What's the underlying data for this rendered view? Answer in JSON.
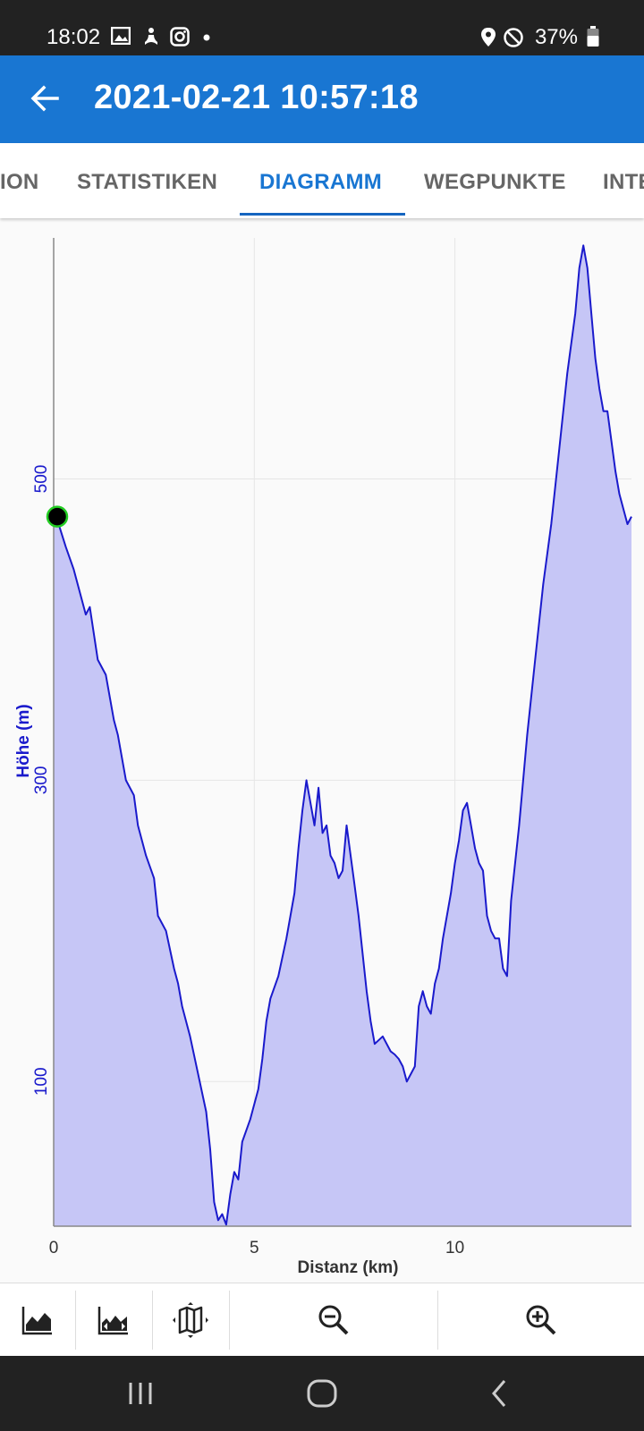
{
  "status_bar": {
    "time": "18:02",
    "battery": "37%",
    "icons": [
      "image-icon",
      "meditation-icon",
      "instagram-icon",
      "dot-icon",
      "location-icon",
      "dnd-icon",
      "battery-icon"
    ]
  },
  "app_bar": {
    "title": "2021-02-21 10:57:18",
    "back_icon": "arrow-left-icon"
  },
  "tabs": [
    {
      "label": "ION",
      "active": false
    },
    {
      "label": "STATISTIKEN",
      "active": false
    },
    {
      "label": "DIAGRAMM",
      "active": true
    },
    {
      "label": "WEGPUNKTE",
      "active": false
    },
    {
      "label": "INTE",
      "active": false
    }
  ],
  "colors": {
    "accent": "#1976d2",
    "line": "#1a1acc",
    "fill": "#c6c6f6",
    "marker": "#000000",
    "marker_border": "#22cc22"
  },
  "chart_data": {
    "type": "area",
    "xlabel": "Distanz (km)",
    "ylabel": "Höhe (m)",
    "xlim": [
      0,
      14.4
    ],
    "ylim": [
      4,
      660
    ],
    "x_ticks": [
      0,
      5,
      10
    ],
    "y_ticks": [
      100,
      300,
      500
    ],
    "grid": true,
    "series": [
      {
        "x": [
          0,
          0.1,
          0.3,
          0.5,
          0.7,
          0.8,
          0.9,
          1.1,
          1.3,
          1.5,
          1.6,
          1.8,
          2.0,
          2.1,
          2.3,
          2.5,
          2.6,
          2.8,
          3.0,
          3.1,
          3.2,
          3.4,
          3.6,
          3.8,
          3.9,
          4.0,
          4.1,
          4.2,
          4.3,
          4.4,
          4.5,
          4.6,
          4.7,
          4.9,
          5.1,
          5.2,
          5.3,
          5.4,
          5.6,
          5.8,
          6.0,
          6.1,
          6.2,
          6.3,
          6.4,
          6.5,
          6.6,
          6.7,
          6.8,
          6.9,
          7.0,
          7.1,
          7.2,
          7.3,
          7.4,
          7.5,
          7.6,
          7.7,
          7.8,
          7.9,
          8.0,
          8.2,
          8.4,
          8.5,
          8.6,
          8.7,
          8.8,
          8.9,
          9.0,
          9.1,
          9.2,
          9.3,
          9.4,
          9.5,
          9.6,
          9.7,
          9.9,
          10.0,
          10.1,
          10.2,
          10.3,
          10.4,
          10.5,
          10.6,
          10.7,
          10.8,
          10.9,
          11.0,
          11.1,
          11.2,
          11.3,
          11.4,
          11.6,
          11.8,
          12.0,
          12.2,
          12.4,
          12.6,
          12.8,
          13.0,
          13.1,
          13.2,
          13.3,
          13.4,
          13.5,
          13.6,
          13.7,
          13.8,
          13.9,
          14.0,
          14.1,
          14.2,
          14.3,
          14.4
        ],
        "y": [
          475,
          472,
          455,
          440,
          420,
          410,
          415,
          380,
          370,
          340,
          330,
          300,
          290,
          270,
          250,
          235,
          210,
          200,
          175,
          165,
          150,
          130,
          105,
          80,
          55,
          20,
          8,
          12,
          5,
          25,
          40,
          35,
          60,
          75,
          95,
          115,
          140,
          155,
          170,
          195,
          225,
          255,
          280,
          300,
          285,
          270,
          295,
          265,
          270,
          250,
          245,
          235,
          240,
          270,
          250,
          230,
          210,
          185,
          160,
          140,
          125,
          130,
          120,
          118,
          115,
          110,
          100,
          105,
          110,
          150,
          160,
          150,
          145,
          165,
          175,
          195,
          225,
          245,
          260,
          280,
          285,
          270,
          255,
          245,
          240,
          210,
          200,
          195,
          195,
          175,
          170,
          220,
          270,
          330,
          380,
          430,
          470,
          520,
          570,
          610,
          640,
          655,
          640,
          610,
          580,
          560,
          545,
          545,
          525,
          505,
          490,
          480,
          470,
          475
        ]
      }
    ],
    "marker": {
      "x": 0,
      "y": 475
    }
  },
  "toolbar": {
    "buttons": [
      "chart-elevation-icon",
      "chart-speed-icon",
      "map-zoom-icon",
      "zoom-out-icon",
      "zoom-in-icon"
    ]
  },
  "nav_bar": {
    "buttons": [
      "recents-icon",
      "home-icon",
      "back-icon"
    ]
  }
}
